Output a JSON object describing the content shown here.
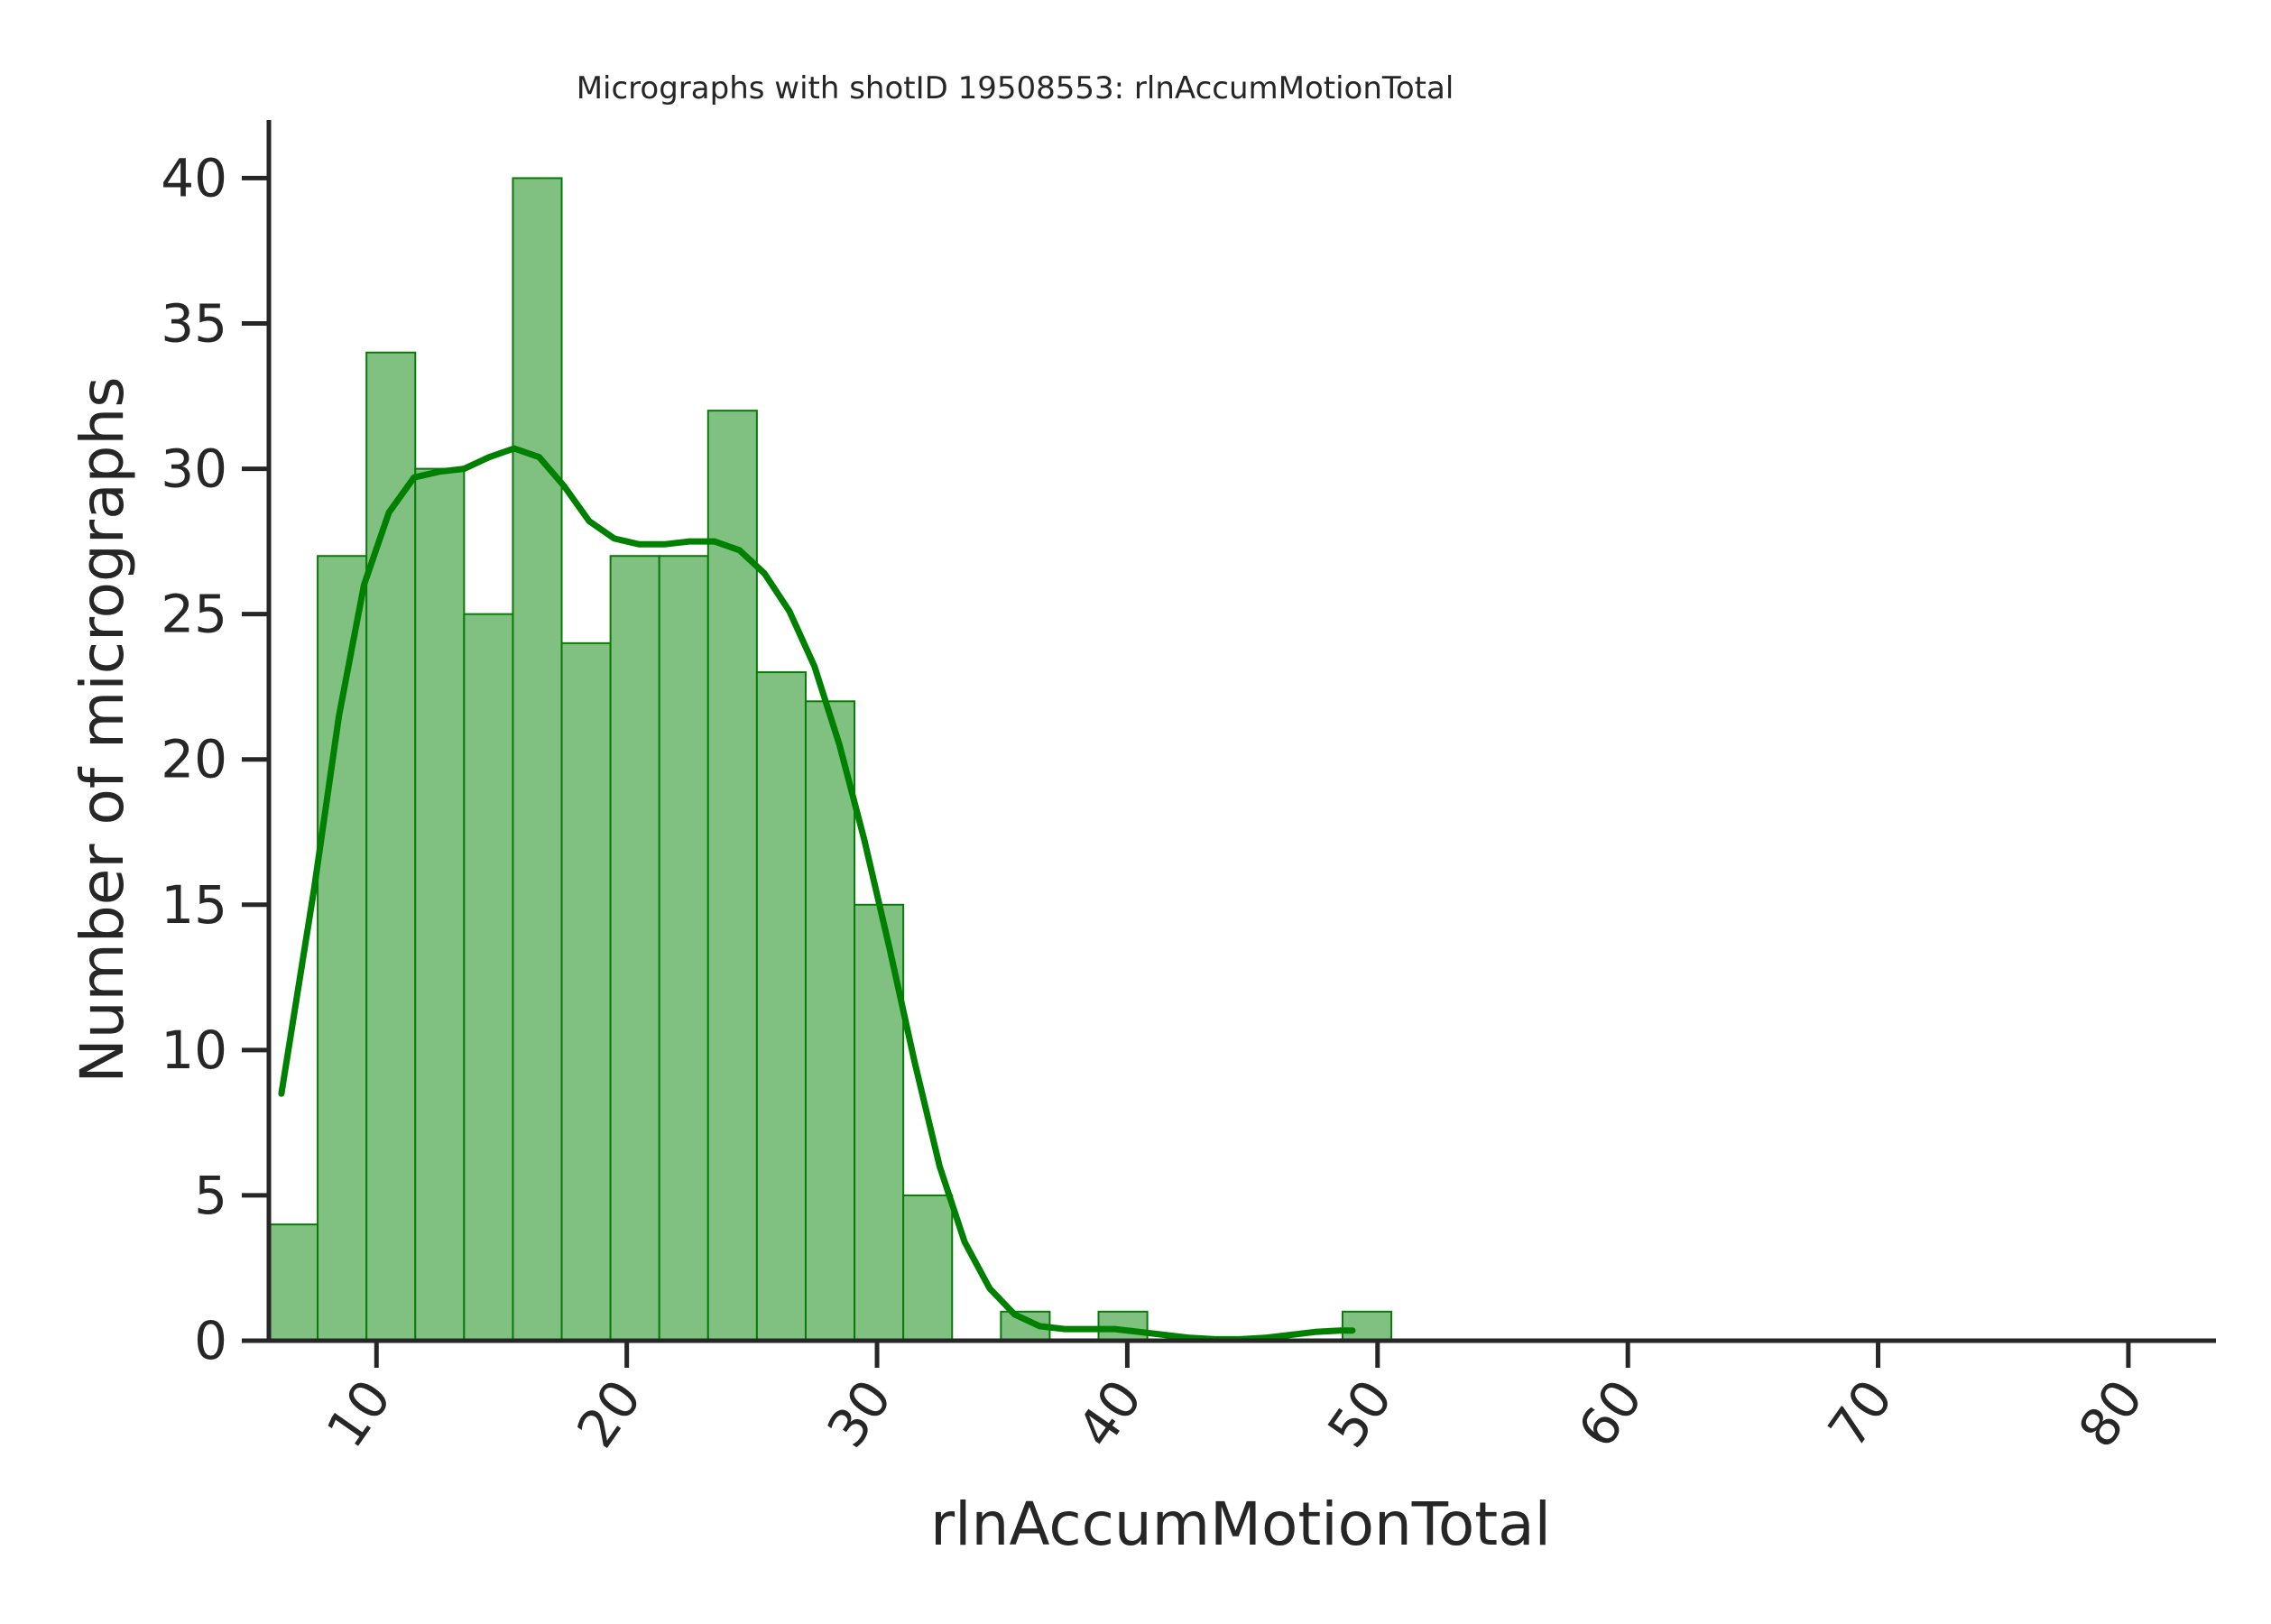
{
  "chart_data": {
    "type": "bar",
    "title": "Micrographs with shotID 19508553: rlnAccumMotionTotal",
    "xlabel": "rlnAccumMotionTotal",
    "ylabel": "Number of micrographs",
    "xlim": [
      5.7,
      83.5
    ],
    "ylim": [
      0,
      42
    ],
    "xticks": [
      10,
      20,
      30,
      40,
      50,
      60,
      70,
      80
    ],
    "yticks": [
      0,
      5,
      10,
      15,
      20,
      25,
      30,
      35,
      40
    ],
    "bin_edges": [
      5.7,
      7.65,
      9.6,
      11.55,
      13.5,
      15.45,
      17.4,
      19.35,
      21.3,
      23.25,
      25.2,
      27.15,
      29.1,
      31.05,
      33.0,
      34.95,
      36.9,
      38.85,
      40.8,
      42.75,
      44.7,
      46.65,
      48.6,
      50.55
    ],
    "counts": [
      4,
      27,
      34,
      30,
      25,
      40,
      24,
      27,
      27,
      32,
      23,
      22,
      15,
      5,
      0,
      1,
      0,
      1,
      0,
      0,
      0,
      0,
      1
    ],
    "kde": {
      "x": [
        6.2,
        7.5,
        8.5,
        9.5,
        10.5,
        11.5,
        12.5,
        13.5,
        14.5,
        15.5,
        16.5,
        17.5,
        18.5,
        19.5,
        20.5,
        21.5,
        22.5,
        23.5,
        24.5,
        25.5,
        26.5,
        27.5,
        28.5,
        29.5,
        30.5,
        31.5,
        32.5,
        33.5,
        34.5,
        35.5,
        36.5,
        37.5,
        38.5,
        39.5,
        40.5,
        41.5,
        42.5,
        43.5,
        44.5,
        45.5,
        46.5,
        47.5,
        48.5,
        49.0
      ],
      "y": [
        8.5,
        15.5,
        21.5,
        26.0,
        28.5,
        29.7,
        29.9,
        30.0,
        30.4,
        30.7,
        30.4,
        29.4,
        28.2,
        27.6,
        27.4,
        27.4,
        27.5,
        27.5,
        27.2,
        26.4,
        25.1,
        23.2,
        20.5,
        17.2,
        13.5,
        9.6,
        6.0,
        3.4,
        1.8,
        0.9,
        0.5,
        0.4,
        0.4,
        0.4,
        0.3,
        0.2,
        0.1,
        0.05,
        0.05,
        0.1,
        0.2,
        0.3,
        0.35,
        0.35
      ]
    },
    "colors": {
      "bar_fill": "#80c080",
      "bar_edge": "#0a7a0a",
      "kde_line": "#008000",
      "axis": "#262626"
    },
    "grid": false,
    "legend": "none"
  }
}
